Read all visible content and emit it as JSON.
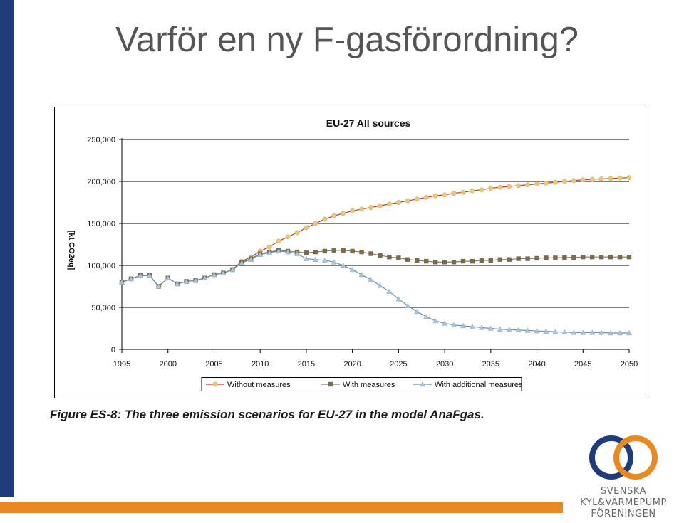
{
  "slide": {
    "title": "Varför en ny F-gasförordning?",
    "caption": "Figure ES-8: The three emission scenarios for EU-27 in the model AnaFgas."
  },
  "logo": {
    "line1": "SVENSKA",
    "line2": "KYL&VÄRMEPUMP",
    "line3": "FÖRENINGEN",
    "colors": {
      "blue_ring": "#1f3d7a",
      "orange_ring": "#e88a22"
    }
  },
  "colors": {
    "side_bar": "#1f3d7a",
    "bottom_bar": "#e88a22"
  },
  "chart_data": {
    "type": "line",
    "title": "EU-27 All sources",
    "xlabel": "",
    "ylabel": "[kt CO2eq]",
    "xlim": [
      1995,
      2050
    ],
    "ylim": [
      0,
      250000
    ],
    "x_ticks": [
      1995,
      2000,
      2005,
      2010,
      2015,
      2020,
      2025,
      2030,
      2035,
      2040,
      2045,
      2050
    ],
    "y_ticks": [
      0,
      50000,
      100000,
      150000,
      200000,
      250000
    ],
    "y_tick_labels": [
      "0",
      "50,000",
      "100,000",
      "150,000",
      "200,000",
      "250,000"
    ],
    "grid": "horizontal",
    "legend_position": "bottom",
    "x": [
      1995,
      1996,
      1997,
      1998,
      1999,
      2000,
      2001,
      2002,
      2003,
      2004,
      2005,
      2006,
      2007,
      2008,
      2009,
      2010,
      2011,
      2012,
      2013,
      2014,
      2015,
      2016,
      2017,
      2018,
      2019,
      2020,
      2021,
      2022,
      2023,
      2024,
      2025,
      2026,
      2027,
      2028,
      2029,
      2030,
      2031,
      2032,
      2033,
      2034,
      2035,
      2036,
      2037,
      2038,
      2039,
      2040,
      2041,
      2042,
      2043,
      2044,
      2045,
      2046,
      2047,
      2048,
      2049,
      2050
    ],
    "series": [
      {
        "name": "Without measures",
        "line_color": "#c8303a",
        "marker_color": "#e6c87a",
        "marker": "circle",
        "values": [
          80000,
          84000,
          88000,
          88000,
          75000,
          85000,
          78000,
          81000,
          82000,
          85000,
          89000,
          91000,
          95000,
          105000,
          110000,
          117000,
          122000,
          129000,
          134000,
          139000,
          145000,
          150000,
          155000,
          159000,
          162000,
          165000,
          167000,
          169000,
          171000,
          173000,
          175000,
          177000,
          179000,
          181000,
          183000,
          184000,
          186000,
          187000,
          189000,
          190000,
          192000,
          193000,
          194000,
          195000,
          196000,
          197000,
          198000,
          199000,
          200000,
          201000,
          202000,
          202500,
          203000,
          203500,
          204000,
          204500
        ]
      },
      {
        "name": "With measures",
        "line_color": "#7f7f6a",
        "marker_color": "#7a6a4e",
        "marker": "square",
        "values": [
          80000,
          84000,
          88000,
          88000,
          75000,
          85000,
          78000,
          81000,
          82000,
          85000,
          89000,
          91000,
          95000,
          104000,
          108000,
          114000,
          116000,
          118000,
          117000,
          116000,
          115000,
          116000,
          117000,
          118000,
          118000,
          117000,
          116000,
          114000,
          112000,
          110000,
          109000,
          107000,
          106000,
          105000,
          104000,
          104000,
          104000,
          105000,
          105000,
          106000,
          106000,
          107000,
          107000,
          108000,
          108000,
          108500,
          109000,
          109000,
          109500,
          109500,
          110000,
          110000,
          110000,
          110000,
          110000,
          110000
        ]
      },
      {
        "name": "With additional measures",
        "line_color": "#6a8fb0",
        "marker_color": "#a9c4d8",
        "marker": "triangle",
        "values": [
          80000,
          84000,
          88000,
          88000,
          75000,
          85000,
          78000,
          81000,
          82000,
          85000,
          89000,
          91000,
          95000,
          103000,
          107000,
          113000,
          115000,
          117000,
          116000,
          114000,
          108000,
          107000,
          106000,
          104000,
          100000,
          95000,
          89000,
          83000,
          76000,
          69000,
          60000,
          52000,
          45000,
          39000,
          34000,
          31000,
          29000,
          28000,
          27000,
          26000,
          25000,
          24000,
          23500,
          23000,
          22500,
          22000,
          21500,
          21000,
          20500,
          20000,
          20000,
          20000,
          20000,
          19500,
          19500,
          19500
        ]
      }
    ]
  }
}
